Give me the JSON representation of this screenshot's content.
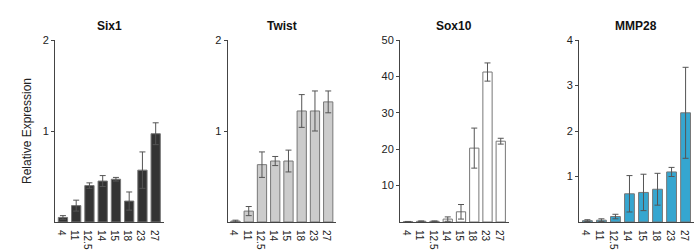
{
  "chart_data": [
    {
      "type": "bar",
      "title": "Six1",
      "y_label": "Relative Expression",
      "categories": [
        "4",
        "11",
        "12.5",
        "14",
        "15",
        "18",
        "23",
        "27"
      ],
      "values": [
        0.05,
        0.18,
        0.4,
        0.45,
        0.47,
        0.23,
        0.57,
        0.97
      ],
      "errors": [
        0.02,
        0.06,
        0.03,
        0.06,
        0.02,
        0.1,
        0.2,
        0.12
      ],
      "color": "#333333",
      "ylim": [
        0,
        2
      ],
      "yticks": [
        1,
        2
      ]
    },
    {
      "type": "bar",
      "title": "Twist",
      "categories": [
        "4",
        "11",
        "12.5",
        "14",
        "15",
        "18",
        "23",
        "27"
      ],
      "values": [
        0.01,
        0.12,
        0.63,
        0.67,
        0.67,
        1.22,
        1.22,
        1.32
      ],
      "errors": [
        0.01,
        0.05,
        0.14,
        0.05,
        0.12,
        0.18,
        0.22,
        0.12
      ],
      "color": "#cccccc",
      "ylim": [
        0,
        2
      ],
      "yticks": [
        1,
        2
      ]
    },
    {
      "type": "bar",
      "title": "Sox10",
      "categories": [
        "4",
        "11",
        "12.5",
        "14",
        "15",
        "18",
        "23",
        "27"
      ],
      "values": [
        0.1,
        0.2,
        0.2,
        0.8,
        2.8,
        20.3,
        41.2,
        22.2
      ],
      "errors": [
        0.05,
        0.1,
        0.1,
        0.6,
        2,
        5.5,
        2.5,
        0.8
      ],
      "color": "#ffffff",
      "ylim": [
        0,
        50
      ],
      "yticks": [
        10,
        20,
        30,
        40,
        50
      ]
    },
    {
      "type": "bar",
      "title": "MMP28",
      "categories": [
        "4",
        "11",
        "12.5",
        "14",
        "15",
        "18",
        "23",
        "27"
      ],
      "values": [
        0.03,
        0.04,
        0.12,
        0.62,
        0.65,
        0.72,
        1.1,
        2.4
      ],
      "errors": [
        0.02,
        0.03,
        0.05,
        0.4,
        0.4,
        0.35,
        0.1,
        1.0
      ],
      "color": "#35a6d0",
      "ylim": [
        0,
        4
      ],
      "yticks": [
        1,
        2,
        3,
        4
      ]
    }
  ]
}
